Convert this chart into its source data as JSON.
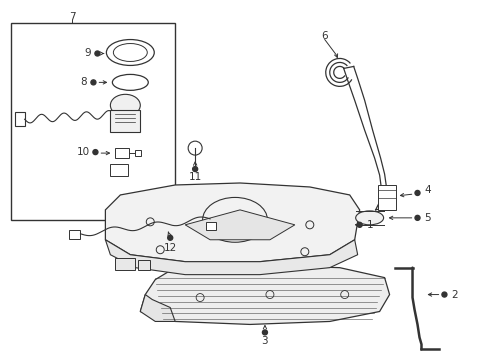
{
  "background_color": "#ffffff",
  "line_color": "#333333",
  "figsize": [
    4.89,
    3.6
  ],
  "dpi": 100
}
